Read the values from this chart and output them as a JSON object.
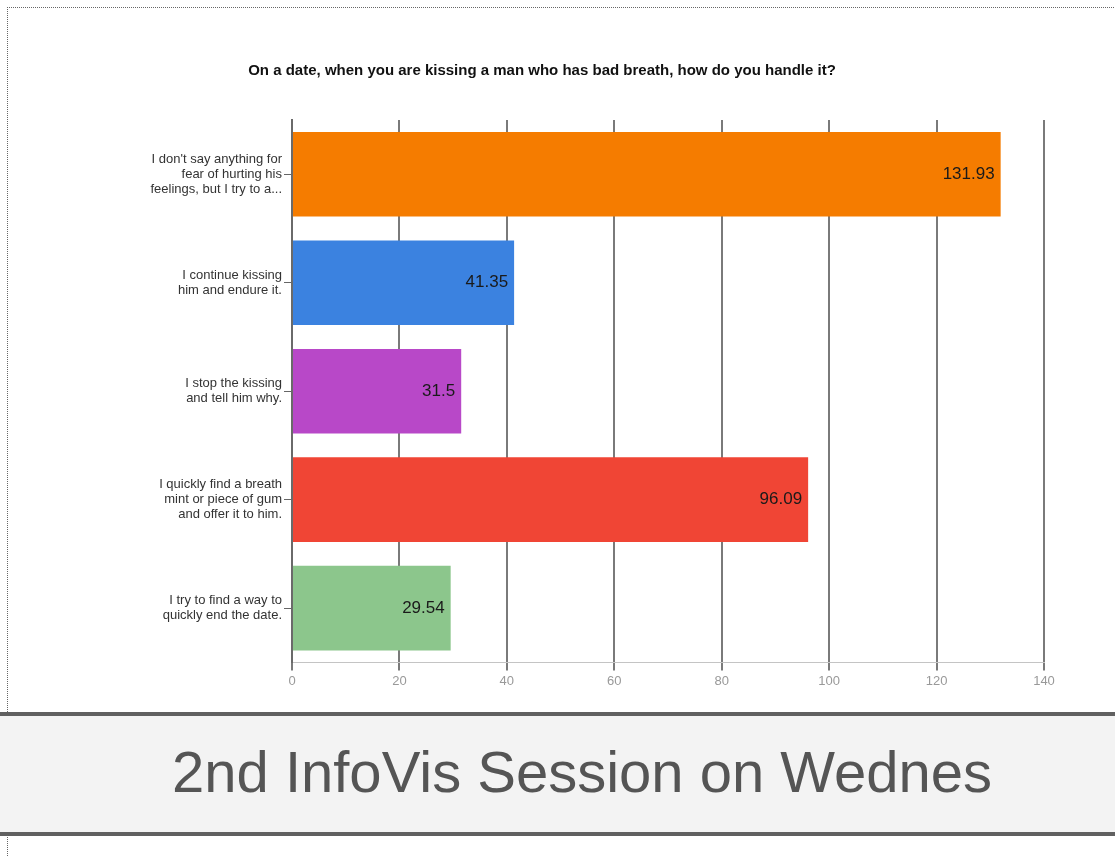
{
  "chart_data": {
    "type": "bar",
    "orientation": "horizontal",
    "title": "On a date, when you are kissing a man who has bad breath, how do you handle it?",
    "categories": [
      "I don't say anything for fear of hurting his feelings, but I try to a...",
      "I continue kissing him and endure it.",
      "I stop the kissing and tell him why.",
      "I quickly find a breath mint or piece of gum and offer it to him.",
      "I try to find a way to quickly end the date."
    ],
    "values": [
      131.93,
      41.35,
      31.5,
      96.09,
      29.54
    ],
    "colors": [
      "#f57c00",
      "#3b82e0",
      "#b848c8",
      "#f04535",
      "#8cc68c"
    ],
    "xlim": [
      0,
      140
    ],
    "xticks": [
      0,
      20,
      40,
      60,
      80,
      100,
      120,
      140
    ],
    "grid": "x",
    "data_labels": true,
    "annotations": [
      "2nd InfoVis Session on Wednes"
    ]
  }
}
